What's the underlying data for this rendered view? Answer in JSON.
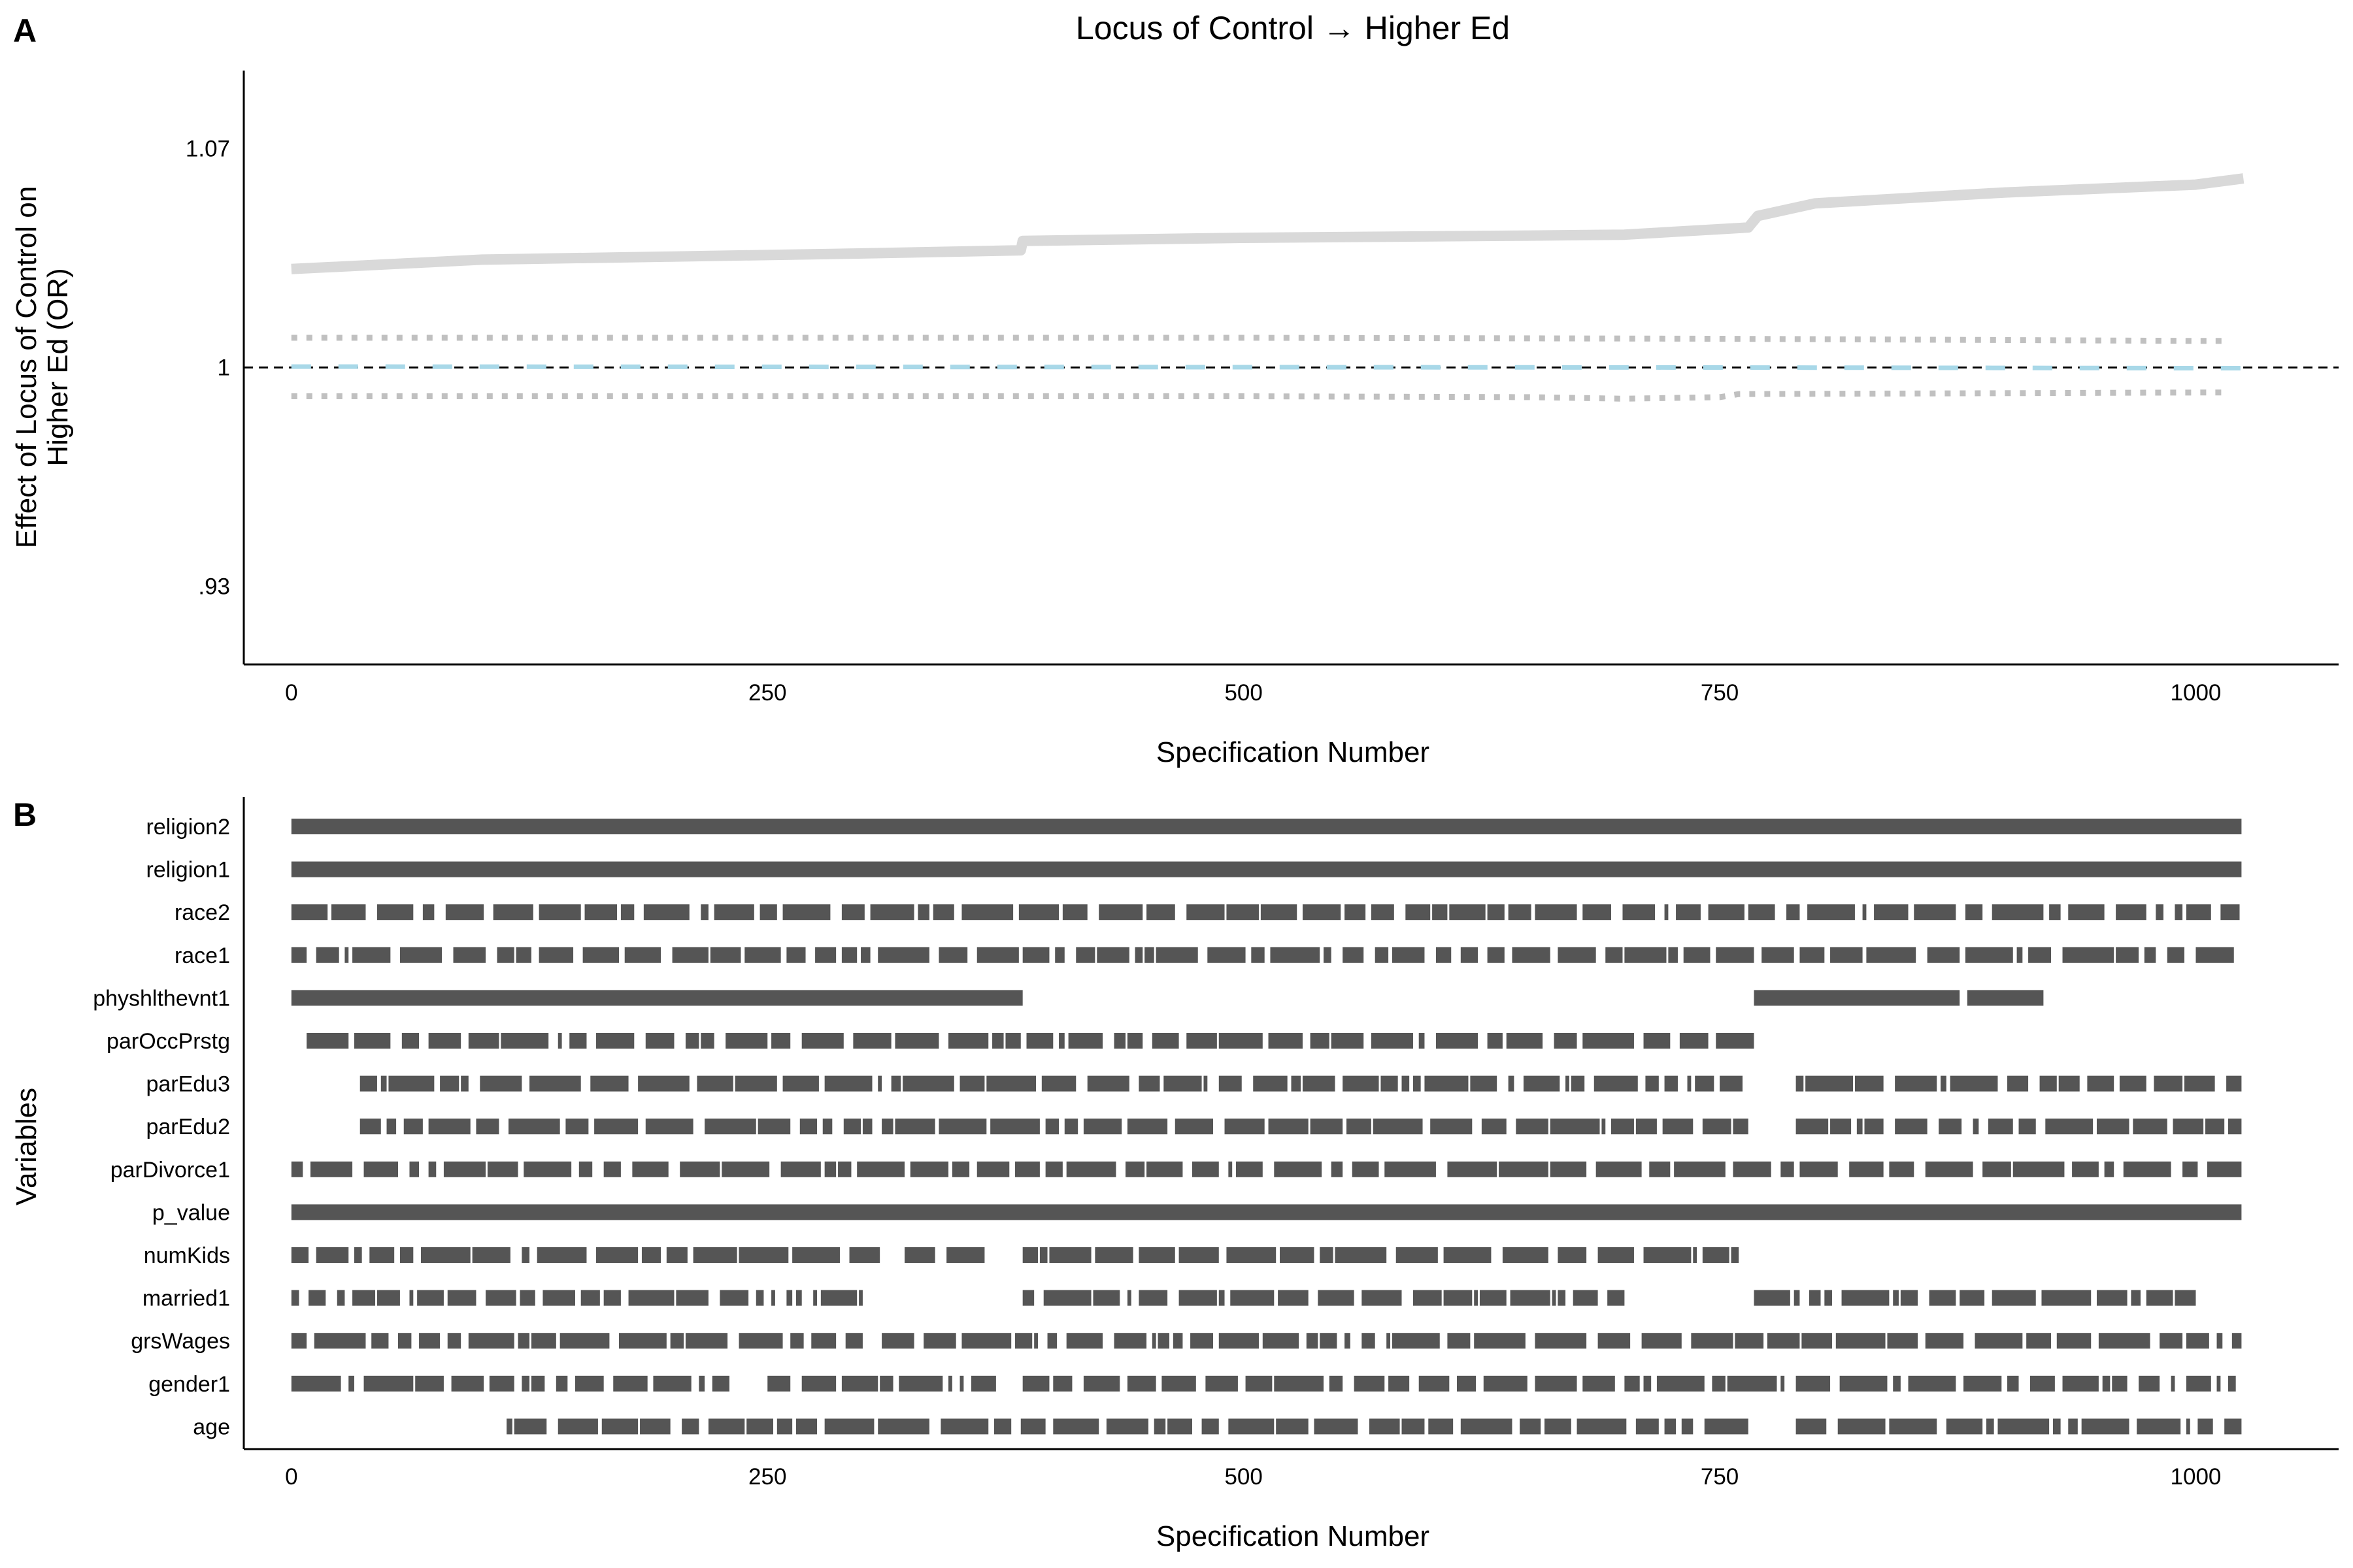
{
  "panel_a": {
    "letter": "A",
    "title": "Locus of Control → Higher Ed",
    "ylabel_line1": "Effect of Locus of Control on",
    "ylabel_line2": "Higher Ed (OR)",
    "xlabel": "Specification Number"
  },
  "panel_b": {
    "letter": "B",
    "ylabel": "Variables",
    "xlabel": "Specification Number"
  },
  "chart_data": [
    {
      "type": "line",
      "panel": "A",
      "title": "Locus of Control → Higher Ed",
      "xlabel": "Specification Number",
      "ylabel": "Effect of Locus of Control on Higher Ed (OR)",
      "xlim": [
        -25,
        1075
      ],
      "ylim": [
        0.905,
        1.095
      ],
      "xticks": [
        {
          "value": 0,
          "label": "0"
        },
        {
          "value": 250,
          "label": "250"
        },
        {
          "value": 500,
          "label": "500"
        },
        {
          "value": 750,
          "label": "750"
        },
        {
          "value": 1000,
          "label": "1000"
        }
      ],
      "yticks": [
        {
          "value": 0.93,
          "label": ".93"
        },
        {
          "value": 1.0,
          "label": "1"
        },
        {
          "value": 1.07,
          "label": "1.07"
        }
      ],
      "reference_line": {
        "value": 1.0,
        "style": "dashed",
        "color": "#000000"
      },
      "series": [
        {
          "role": "estimate",
          "color": "#d9d9d9",
          "style": "solid",
          "x": [
            0,
            100,
            200,
            300,
            383,
            384,
            500,
            650,
            700,
            765,
            770,
            800,
            900,
            1000,
            1025
          ],
          "y": [
            1.0315,
            1.0345,
            1.0355,
            1.0365,
            1.0375,
            1.0405,
            1.0415,
            1.0422,
            1.0425,
            1.0448,
            1.0485,
            1.0525,
            1.056,
            1.0585,
            1.0605
          ]
        },
        {
          "role": "upper_ci",
          "color": "#c0c0c0",
          "style": "dotted",
          "x": [
            0,
            250,
            500,
            750,
            1000,
            1015
          ],
          "y": [
            1.0095,
            1.0095,
            1.0095,
            1.0092,
            1.0085,
            1.0085
          ]
        },
        {
          "role": "point_estimate",
          "color": "#a8d8e8",
          "style": "dashed",
          "x": [
            0,
            250,
            500,
            750,
            1000,
            1025
          ],
          "y": [
            1.0003,
            1.0002,
            1.0001,
            1.0,
            0.9998,
            0.9998
          ]
        },
        {
          "role": "lower_ci",
          "color": "#c0c0c0",
          "style": "dotted",
          "x": [
            0,
            250,
            500,
            650,
            700,
            750,
            760,
            1000,
            1015
          ],
          "y": [
            0.9908,
            0.9908,
            0.9908,
            0.9905,
            0.99,
            0.9905,
            0.9915,
            0.992,
            0.992
          ]
        }
      ]
    },
    {
      "type": "heatmap",
      "panel": "B",
      "xlabel": "Specification Number",
      "ylabel": "Variables",
      "xlim": [
        -25,
        1075
      ],
      "xticks": [
        {
          "value": 0,
          "label": "0"
        },
        {
          "value": 250,
          "label": "250"
        },
        {
          "value": 500,
          "label": "500"
        },
        {
          "value": 750,
          "label": "750"
        },
        {
          "value": 1000,
          "label": "1000"
        }
      ],
      "mark_color": "#555555",
      "variables": [
        {
          "name": "religion2",
          "pattern": "full",
          "segments": [
            [
              0,
              1024
            ]
          ]
        },
        {
          "name": "religion1",
          "pattern": "full",
          "segments": [
            [
              0,
              1024
            ]
          ]
        },
        {
          "name": "race2",
          "pattern": "sparse",
          "segments": [
            [
              0,
              1024
            ]
          ]
        },
        {
          "name": "race1",
          "pattern": "sparse",
          "segments": [
            [
              0,
              1024
            ]
          ]
        },
        {
          "name": "physhlthevnt1",
          "pattern": "full",
          "segments": [
            [
              0,
              384
            ],
            [
              768,
              876
            ],
            [
              880,
              920
            ]
          ]
        },
        {
          "name": "parOccPrstg",
          "pattern": "sparse",
          "segments": [
            [
              8,
              768
            ]
          ]
        },
        {
          "name": "parEdu3",
          "pattern": "sparse",
          "segments": [
            [
              36,
              765
            ],
            [
              790,
              1024
            ]
          ]
        },
        {
          "name": "parEdu2",
          "pattern": "sparse",
          "segments": [
            [
              36,
              765
            ],
            [
              790,
              1024
            ]
          ]
        },
        {
          "name": "parDivorce1",
          "pattern": "sparse",
          "segments": [
            [
              0,
              1024
            ]
          ]
        },
        {
          "name": "p_value",
          "pattern": "full",
          "segments": [
            [
              0,
              1024
            ]
          ]
        },
        {
          "name": "numKids",
          "pattern": "sparse",
          "segments": [
            [
              0,
              310
            ],
            [
              322,
              364
            ],
            [
              384,
              760
            ]
          ]
        },
        {
          "name": "married1",
          "pattern": "sparse",
          "segments": [
            [
              0,
              300
            ],
            [
              384,
              700
            ],
            [
              768,
              1000
            ]
          ]
        },
        {
          "name": "grsWages",
          "pattern": "sparse",
          "segments": [
            [
              0,
              300
            ],
            [
              310,
              1024
            ]
          ]
        },
        {
          "name": "gender1",
          "pattern": "sparse",
          "segments": [
            [
              0,
              230
            ],
            [
              250,
              370
            ],
            [
              384,
              1024
            ]
          ]
        },
        {
          "name": "age",
          "pattern": "sparse",
          "segments": [
            [
              113,
              765
            ],
            [
              790,
              1024
            ]
          ]
        }
      ]
    }
  ]
}
